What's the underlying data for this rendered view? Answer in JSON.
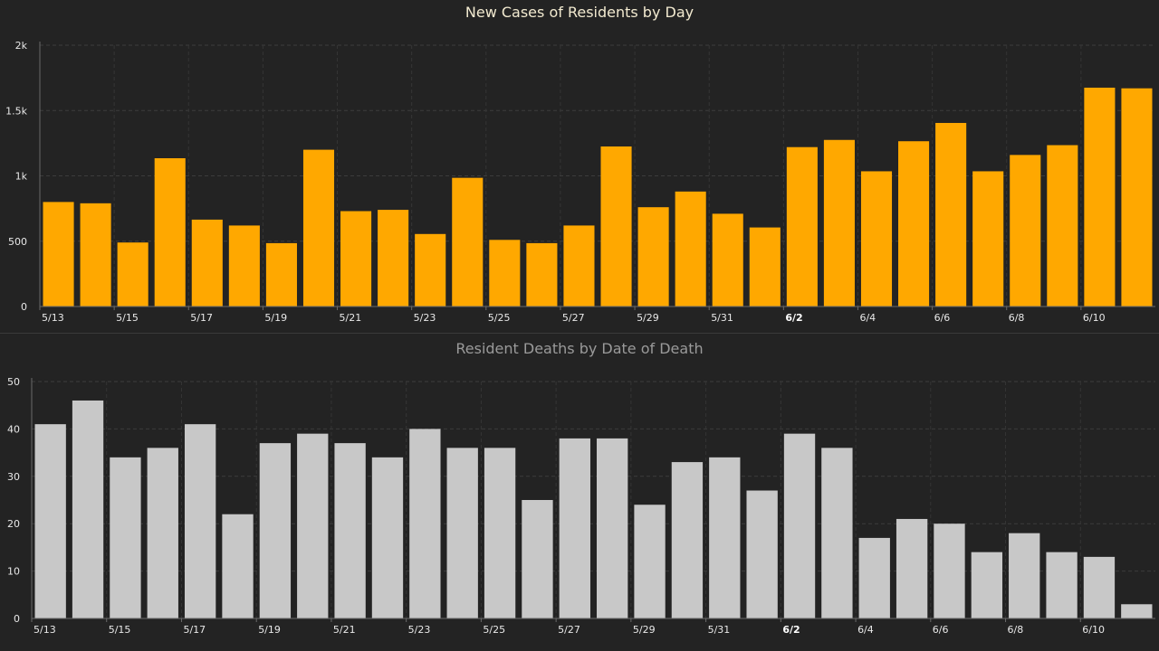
{
  "chart_data": [
    {
      "type": "bar",
      "title": "New Cases of Residents by Day",
      "categories": [
        "5/13",
        "5/14",
        "5/15",
        "5/16",
        "5/17",
        "5/18",
        "5/19",
        "5/20",
        "5/21",
        "5/22",
        "5/23",
        "5/24",
        "5/25",
        "5/26",
        "5/27",
        "5/28",
        "5/29",
        "5/30",
        "5/31",
        "6/1",
        "6/2",
        "6/3",
        "6/4",
        "6/5",
        "6/6",
        "6/7",
        "6/8",
        "6/9",
        "6/10",
        "6/11"
      ],
      "values": [
        800,
        790,
        490,
        1135,
        665,
        620,
        485,
        1200,
        730,
        740,
        555,
        985,
        510,
        485,
        620,
        1225,
        760,
        880,
        710,
        605,
        1220,
        1275,
        1035,
        1265,
        1405,
        1035,
        1160,
        1235,
        1675,
        1670
      ],
      "x_tick_labels": [
        "5/13",
        "5/15",
        "5/17",
        "5/19",
        "5/21",
        "5/23",
        "5/25",
        "5/27",
        "5/29",
        "5/31",
        "6/2",
        "6/4",
        "6/6",
        "6/8",
        "6/10"
      ],
      "bold_tick": "6/2",
      "y_ticks": [
        0,
        500,
        1000,
        1500,
        2000
      ],
      "y_tick_labels": [
        "0",
        "500",
        "1k",
        "1.5k",
        "2k"
      ],
      "ylim": [
        0,
        2000
      ],
      "grid": true,
      "bar_color": "#ffa800",
      "xlabel": "",
      "ylabel": ""
    },
    {
      "type": "bar",
      "title": "Resident Deaths by Date of Death",
      "categories": [
        "5/13",
        "5/14",
        "5/15",
        "5/16",
        "5/17",
        "5/18",
        "5/19",
        "5/20",
        "5/21",
        "5/22",
        "5/23",
        "5/24",
        "5/25",
        "5/26",
        "5/27",
        "5/28",
        "5/29",
        "5/30",
        "5/31",
        "6/1",
        "6/2",
        "6/3",
        "6/4",
        "6/5",
        "6/6",
        "6/7",
        "6/8",
        "6/9",
        "6/10",
        "6/11"
      ],
      "values": [
        41,
        46,
        34,
        36,
        41,
        22,
        37,
        39,
        37,
        34,
        40,
        36,
        36,
        25,
        38,
        38,
        24,
        33,
        34,
        27,
        39,
        36,
        17,
        21,
        20,
        14,
        18,
        14,
        13,
        3
      ],
      "x_tick_labels": [
        "5/13",
        "5/15",
        "5/17",
        "5/19",
        "5/21",
        "5/23",
        "5/25",
        "5/27",
        "5/29",
        "5/31",
        "6/2",
        "6/4",
        "6/6",
        "6/8",
        "6/10"
      ],
      "bold_tick": "6/2",
      "y_ticks": [
        0,
        10,
        20,
        30,
        40,
        50
      ],
      "y_tick_labels": [
        "0",
        "10",
        "20",
        "30",
        "40",
        "50"
      ],
      "ylim": [
        0,
        50
      ],
      "grid": true,
      "bar_color": "#c8c8c8",
      "xlabel": "",
      "ylabel": ""
    }
  ]
}
